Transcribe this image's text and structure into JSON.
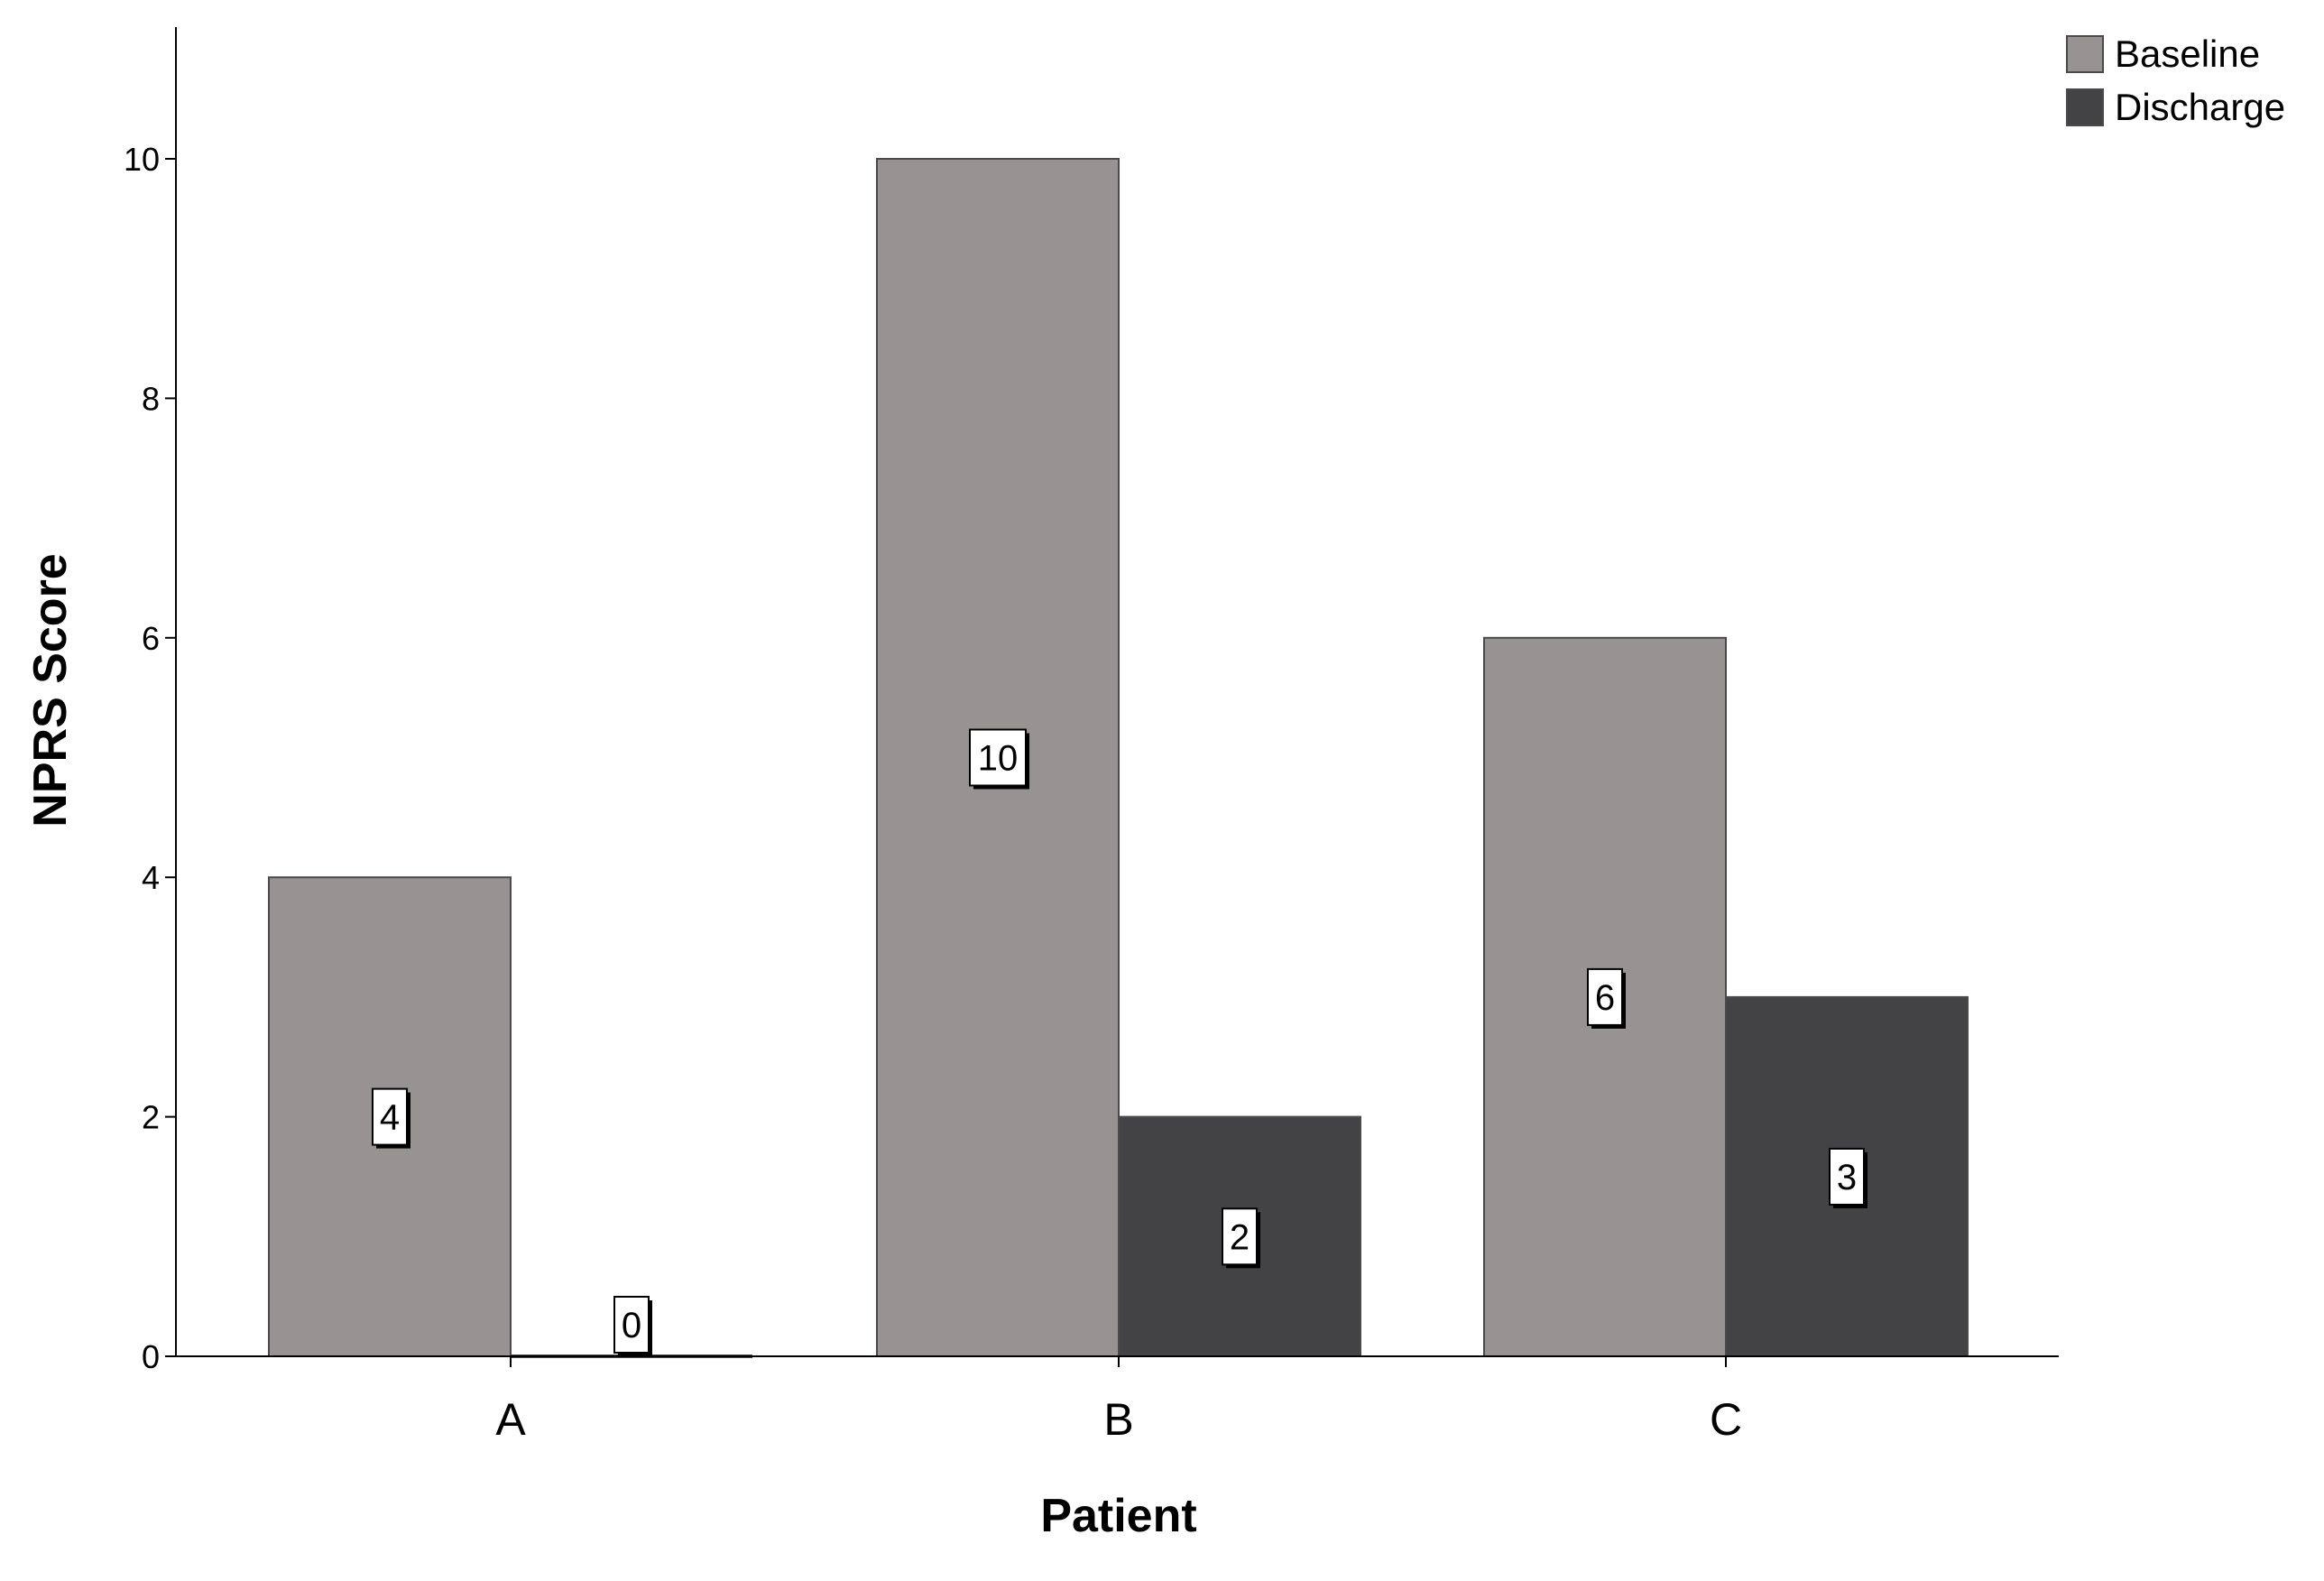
{
  "chart_data": {
    "type": "bar",
    "xlabel": "Patient",
    "ylabel": "NPRS Score",
    "categories": [
      "A",
      "B",
      "C"
    ],
    "series": [
      {
        "name": "Baseline",
        "values": [
          4,
          10,
          6
        ],
        "color": "#989393"
      },
      {
        "name": "Discharge",
        "values": [
          0,
          2,
          3
        ],
        "color": "#434345"
      }
    ],
    "ylim": [
      0,
      11.1
    ],
    "yticks": [
      0,
      2,
      4,
      6,
      8,
      10
    ],
    "grid": false,
    "legend_position": "top-right",
    "data_labels": true
  }
}
